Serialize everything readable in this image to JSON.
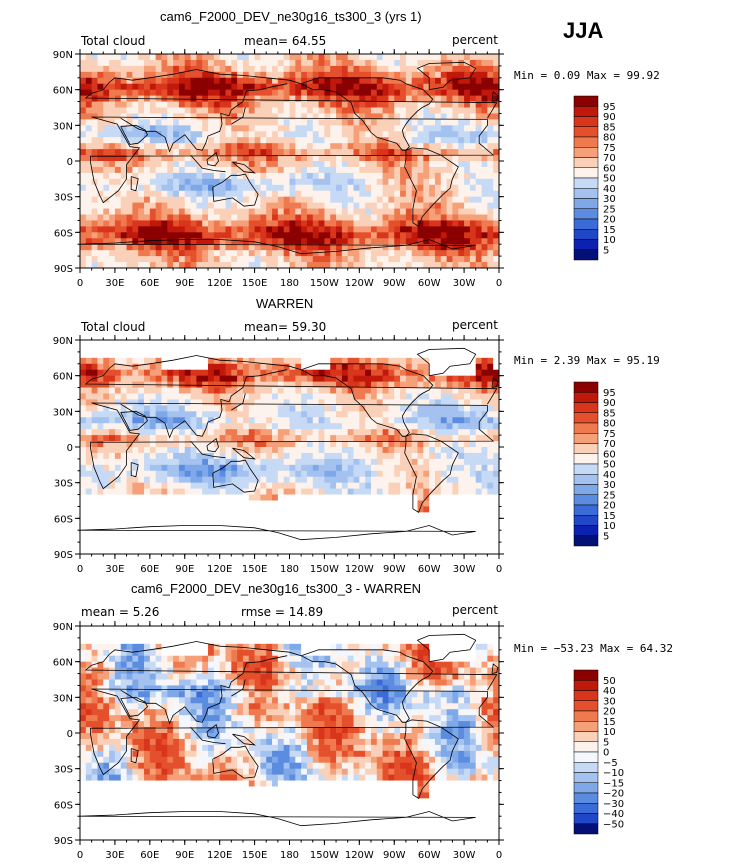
{
  "season": "JJA",
  "chart_data": [
    {
      "type": "heatmap",
      "title": "cam6_F2000_DEV_ne30g16_ts300_3 (yrs 1)",
      "left_label": "Total cloud",
      "center_label": "mean=  64.55",
      "right_label": "percent",
      "stats": "Min =    0.09 Max =   99.92",
      "min": 0.09,
      "max": 99.92,
      "mean": 64.55,
      "xlabel_ticks": [
        "0",
        "30E",
        "60E",
        "90E",
        "120E",
        "150E",
        "180",
        "150W",
        "120W",
        "90W",
        "60W",
        "30W",
        "0"
      ],
      "ylabel_ticks": [
        "90N",
        "60N",
        "30N",
        "0",
        "30S",
        "60S",
        "90S"
      ],
      "colorbar_labels": [
        "95",
        "90",
        "85",
        "80",
        "75",
        "70",
        "60",
        "50",
        "40",
        "30",
        "25",
        "20",
        "15",
        "10",
        "5"
      ],
      "colorbar_colors": [
        "#8b0000",
        "#c0180a",
        "#d8351c",
        "#e5502c",
        "#ef7a4f",
        "#f5a079",
        "#fbd0b8",
        "#fdf3ec",
        "#c7daf5",
        "#a3c2ef",
        "#7ea8e8",
        "#5b8ce0",
        "#3a6bd6",
        "#1f47c8",
        "#0c21b0",
        "#050f78"
      ]
    },
    {
      "type": "heatmap",
      "title": "WARREN",
      "left_label": "Total cloud",
      "center_label": "mean=  59.30",
      "right_label": "percent",
      "stats": "Min =    2.39 Max =   95.19",
      "min": 2.39,
      "max": 95.19,
      "mean": 59.3,
      "xlabel_ticks": [
        "0",
        "30E",
        "60E",
        "90E",
        "120E",
        "150E",
        "180",
        "150W",
        "120W",
        "90W",
        "60W",
        "30W",
        "0"
      ],
      "ylabel_ticks": [
        "90N",
        "60N",
        "30N",
        "0",
        "30S",
        "60S",
        "90S"
      ],
      "colorbar_labels": [
        "95",
        "90",
        "85",
        "80",
        "75",
        "70",
        "60",
        "50",
        "40",
        "30",
        "25",
        "20",
        "15",
        "10",
        "5"
      ],
      "colorbar_colors": [
        "#8b0000",
        "#c0180a",
        "#d8351c",
        "#e5502c",
        "#ef7a4f",
        "#f5a079",
        "#fbd0b8",
        "#fdf3ec",
        "#c7daf5",
        "#a3c2ef",
        "#7ea8e8",
        "#5b8ce0",
        "#3a6bd6",
        "#1f47c8",
        "#0c21b0",
        "#050f78"
      ]
    },
    {
      "type": "heatmap",
      "title": "cam6_F2000_DEV_ne30g16_ts300_3 - WARREN",
      "left_label": "mean =    5.26",
      "center_label": "rmse =   14.89",
      "right_label": "percent",
      "stats": "Min = −53.23 Max =   64.32",
      "min": -53.23,
      "max": 64.32,
      "mean": 5.26,
      "rmse": 14.89,
      "xlabel_ticks": [
        "0",
        "30E",
        "60E",
        "90E",
        "120E",
        "150E",
        "180",
        "150W",
        "120W",
        "90W",
        "60W",
        "30W",
        "0"
      ],
      "ylabel_ticks": [
        "90N",
        "60N",
        "30N",
        "0",
        "30S",
        "60S",
        "90S"
      ],
      "colorbar_labels": [
        "50",
        "40",
        "30",
        "20",
        "15",
        "10",
        "5",
        "0",
        "−5",
        "−10",
        "−15",
        "−20",
        "−30",
        "−40",
        "−50"
      ],
      "colorbar_colors": [
        "#8b0000",
        "#c0180a",
        "#d8351c",
        "#e5502c",
        "#ef7a4f",
        "#f5a079",
        "#fbd0b8",
        "#fdf3ec",
        "#f4f7fd",
        "#c7daf5",
        "#a3c2ef",
        "#7ea8e8",
        "#5b8ce0",
        "#3a6bd6",
        "#1f47c8",
        "#050f78"
      ]
    }
  ]
}
